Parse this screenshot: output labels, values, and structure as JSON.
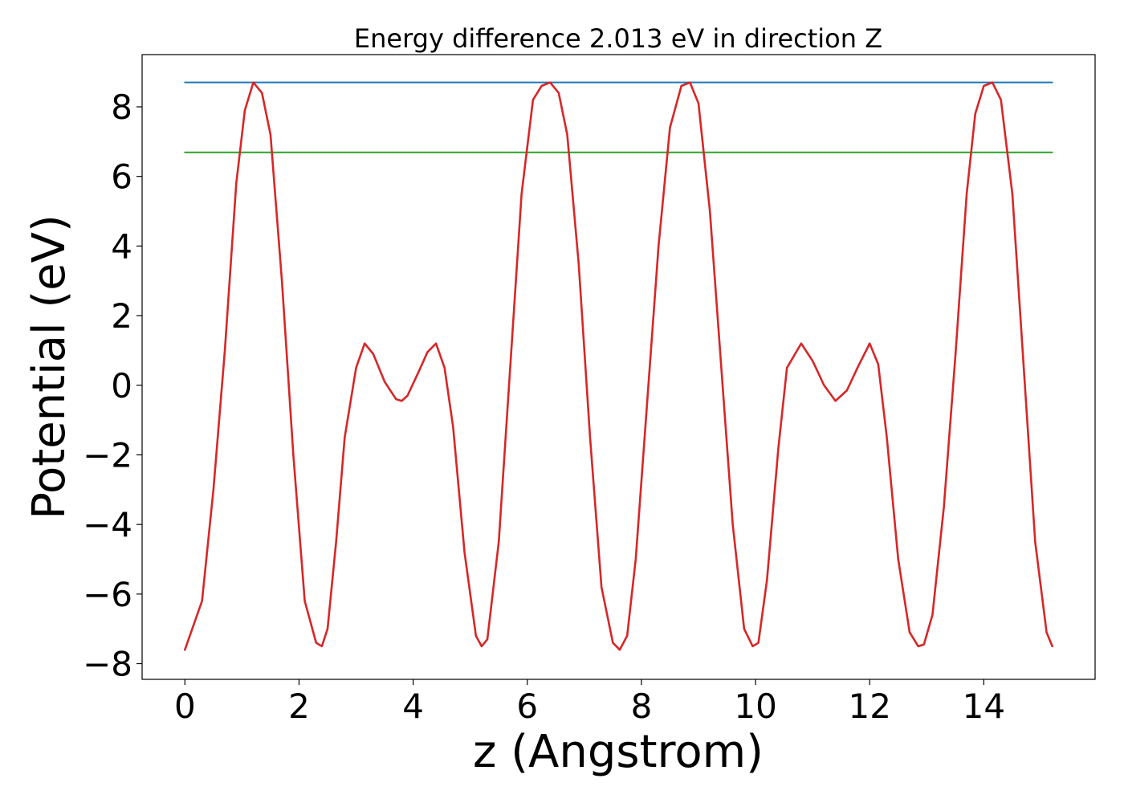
{
  "chart_data": {
    "type": "line",
    "title": "Energy difference 2.013 eV in direction Z",
    "xlabel": "z (Angstrom)",
    "ylabel": "Potential (eV)",
    "xlim": [
      -0.75,
      15.95
    ],
    "ylim": [
      -8.45,
      9.5
    ],
    "xticks": [
      0,
      2,
      4,
      6,
      8,
      10,
      12,
      14
    ],
    "xtick_labels": [
      "0",
      "2",
      "4",
      "6",
      "8",
      "10",
      "12",
      "14"
    ],
    "yticks": [
      -8,
      -6,
      -4,
      -2,
      0,
      2,
      4,
      6,
      8
    ],
    "ytick_labels": [
      "−8",
      "−6",
      "−4",
      "−2",
      "0",
      "2",
      "4",
      "6",
      "8"
    ],
    "grid": false,
    "series": [
      {
        "color": "#1f77b4",
        "x": [
          0,
          15.2
        ],
        "y": [
          8.7,
          8.7
        ]
      },
      {
        "color": "#2ca02c",
        "x": [
          0,
          15.2
        ],
        "y": [
          6.69,
          6.69
        ]
      },
      {
        "color": "#d62728",
        "x": [
          0,
          0.3,
          0.5,
          0.7,
          0.9,
          1.05,
          1.2,
          1.35,
          1.5,
          1.7,
          1.9,
          2.1,
          2.3,
          2.4,
          2.5,
          2.65,
          2.8,
          3.0,
          3.15,
          3.3,
          3.5,
          3.7,
          3.8,
          3.9,
          4.1,
          4.25,
          4.4,
          4.55,
          4.7,
          4.9,
          5.1,
          5.2,
          5.3,
          5.5,
          5.7,
          5.9,
          6.1,
          6.25,
          6.4,
          6.55,
          6.7,
          6.9,
          7.1,
          7.3,
          7.5,
          7.62,
          7.75,
          7.9,
          8.1,
          8.3,
          8.5,
          8.7,
          8.85,
          9.0,
          9.2,
          9.4,
          9.6,
          9.8,
          9.95,
          10.05,
          10.2,
          10.4,
          10.55,
          10.8,
          11.0,
          11.2,
          11.4,
          11.6,
          11.8,
          12.0,
          12.15,
          12.3,
          12.5,
          12.7,
          12.85,
          12.95,
          13.1,
          13.3,
          13.5,
          13.7,
          13.85,
          14.0,
          14.15,
          14.3,
          14.5,
          14.7,
          14.9,
          15.1,
          15.2
        ],
        "y": [
          -7.6,
          -6.2,
          -3.0,
          1.0,
          5.8,
          7.9,
          8.7,
          8.4,
          7.2,
          3.0,
          -2.0,
          -6.2,
          -7.4,
          -7.5,
          -7.0,
          -4.5,
          -1.5,
          0.5,
          1.2,
          0.9,
          0.1,
          -0.4,
          -0.45,
          -0.3,
          0.4,
          0.95,
          1.2,
          0.5,
          -1.2,
          -4.8,
          -7.2,
          -7.5,
          -7.3,
          -4.5,
          0.5,
          5.5,
          8.2,
          8.6,
          8.7,
          8.4,
          7.2,
          3.5,
          -1.5,
          -5.8,
          -7.4,
          -7.6,
          -7.2,
          -5.0,
          -0.5,
          4.0,
          7.4,
          8.6,
          8.7,
          8.1,
          5.0,
          0.5,
          -4.0,
          -7.0,
          -7.5,
          -7.4,
          -5.6,
          -1.8,
          0.5,
          1.2,
          0.7,
          0.0,
          -0.45,
          -0.15,
          0.55,
          1.2,
          0.6,
          -1.5,
          -5.0,
          -7.1,
          -7.5,
          -7.45,
          -6.6,
          -3.5,
          0.8,
          5.5,
          7.8,
          8.6,
          8.7,
          8.2,
          5.5,
          0.5,
          -4.5,
          -7.1,
          -7.5
        ]
      }
    ]
  }
}
